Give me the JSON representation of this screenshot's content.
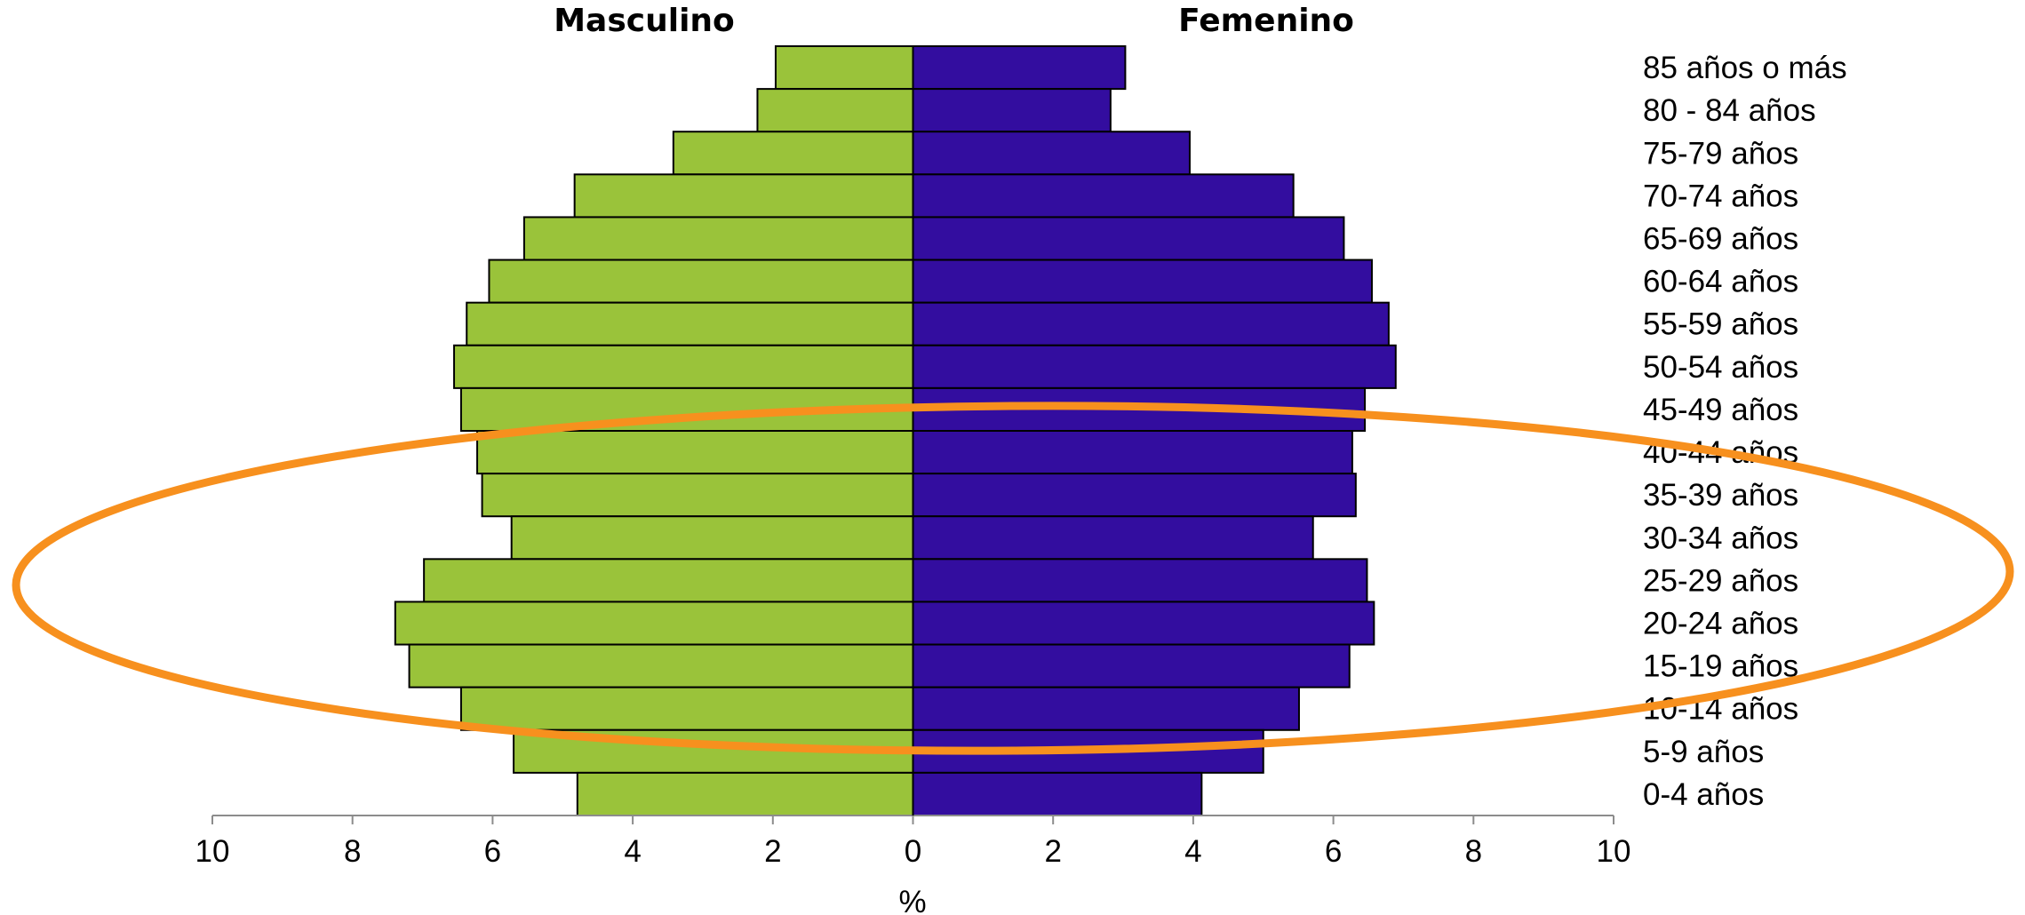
{
  "chart_data": {
    "type": "bar",
    "orientation": "horizontal",
    "subtype": "population-pyramid",
    "categories": [
      "85 años o más",
      "80 - 84 años",
      "75-79 años",
      "70-74 años",
      "65-69 años",
      "60-64 años",
      "55-59 años",
      "50-54 años",
      "45-49 años",
      "40-44 años",
      "35-39 años",
      "30-34 años",
      "25-29 años",
      "20-24 años",
      "15-19 años",
      "10-14 años",
      "5-9 años",
      "0-4 años"
    ],
    "series": [
      {
        "name": "Masculino",
        "color": "#9ac33a",
        "values": [
          1.96,
          2.22,
          3.42,
          4.83,
          5.55,
          6.05,
          6.37,
          6.55,
          6.45,
          6.22,
          6.15,
          5.73,
          6.98,
          7.39,
          7.19,
          6.45,
          5.7,
          4.79
        ]
      },
      {
        "name": "Femenino",
        "color": "#330d9f",
        "values": [
          3.03,
          2.82,
          3.95,
          5.43,
          6.15,
          6.55,
          6.79,
          6.89,
          6.45,
          6.27,
          6.32,
          5.71,
          6.48,
          6.58,
          6.23,
          5.51,
          5.0,
          4.12
        ]
      }
    ],
    "xlabel": "%",
    "xlim": [
      -10,
      10
    ],
    "xticks": [
      "10",
      "8",
      "6",
      "4",
      "2",
      "0",
      "2",
      "4",
      "6",
      "8",
      "10"
    ],
    "highlight_color": "#f7901e"
  }
}
